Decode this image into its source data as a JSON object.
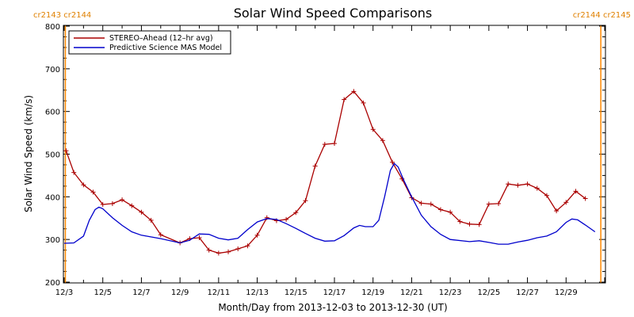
{
  "chart_data": {
    "type": "line",
    "title": "Solar Wind Speed Comparisons",
    "xlabel": "Month/Day from 2013-12-03 to 2013-12-30 (UT)",
    "ylabel": "Solar Wind Speed (km/s)",
    "xlim": [
      0,
      28
    ],
    "ylim": [
      200,
      800
    ],
    "x_ticks": [
      {
        "x": 0,
        "label": "12/3"
      },
      {
        "x": 2,
        "label": "12/5"
      },
      {
        "x": 4,
        "label": "12/7"
      },
      {
        "x": 6,
        "label": "12/9"
      },
      {
        "x": 8,
        "label": "12/11"
      },
      {
        "x": 10,
        "label": "12/13"
      },
      {
        "x": 12,
        "label": "12/15"
      },
      {
        "x": 14,
        "label": "12/17"
      },
      {
        "x": 16,
        "label": "12/19"
      },
      {
        "x": 18,
        "label": "12/21"
      },
      {
        "x": 20,
        "label": "12/23"
      },
      {
        "x": 22,
        "label": "12/25"
      },
      {
        "x": 24,
        "label": "12/27"
      },
      {
        "x": 26,
        "label": "12/29"
      }
    ],
    "y_ticks": [
      200,
      300,
      400,
      500,
      600,
      700,
      800
    ],
    "legend_position": "top-left",
    "colors": {
      "stereo": "#aa0000",
      "model": "#0000cc",
      "cr_line": "#ff8800",
      "cr_text": "#e08000"
    },
    "carrington_markers": [
      {
        "x": 0.06,
        "label": "cr2143 cr2144",
        "anchor": "start"
      },
      {
        "x": 27.8,
        "label": "cr2144 cr2145",
        "anchor": "end"
      }
    ],
    "series": [
      {
        "name": "STEREO–Ahead (12–hr avg)",
        "color": "#aa0000",
        "markers": true,
        "points": [
          [
            0.1,
            508
          ],
          [
            0.5,
            457
          ],
          [
            1.0,
            428
          ],
          [
            1.5,
            411
          ],
          [
            2.0,
            382
          ],
          [
            2.5,
            384
          ],
          [
            3.0,
            393
          ],
          [
            3.5,
            379
          ],
          [
            4.0,
            364
          ],
          [
            4.5,
            345
          ],
          [
            5.0,
            311
          ],
          [
            6.0,
            292
          ],
          [
            6.5,
            302
          ],
          [
            7.0,
            304
          ],
          [
            7.5,
            275
          ],
          [
            8.0,
            268
          ],
          [
            8.5,
            271
          ],
          [
            9.0,
            278
          ],
          [
            9.5,
            285
          ],
          [
            10.0,
            310
          ],
          [
            10.5,
            351
          ],
          [
            11.0,
            344
          ],
          [
            11.5,
            347
          ],
          [
            12.0,
            363
          ],
          [
            12.5,
            391
          ],
          [
            13.0,
            472
          ],
          [
            13.5,
            523
          ],
          [
            14.0,
            525
          ],
          [
            14.5,
            628
          ],
          [
            15.0,
            647
          ],
          [
            15.5,
            620
          ],
          [
            16.0,
            558
          ],
          [
            16.5,
            532
          ],
          [
            17.0,
            481
          ],
          [
            17.5,
            442
          ],
          [
            18.0,
            398
          ],
          [
            18.5,
            385
          ],
          [
            19.0,
            383
          ],
          [
            19.5,
            370
          ],
          [
            20.0,
            364
          ],
          [
            20.5,
            342
          ],
          [
            21.0,
            336
          ],
          [
            21.5,
            335
          ],
          [
            22.0,
            383
          ],
          [
            22.5,
            384
          ],
          [
            23.0,
            430
          ],
          [
            23.5,
            427
          ],
          [
            24.0,
            430
          ],
          [
            24.5,
            420
          ],
          [
            25.0,
            403
          ],
          [
            25.5,
            367
          ],
          [
            26.0,
            387
          ],
          [
            26.5,
            413
          ],
          [
            27.0,
            396
          ]
        ]
      },
      {
        "name": "Predictive Science MAS Model",
        "color": "#0000cc",
        "markers": false,
        "points": [
          [
            0.0,
            291
          ],
          [
            0.5,
            292
          ],
          [
            1.0,
            308
          ],
          [
            1.3,
            345
          ],
          [
            1.6,
            370
          ],
          [
            1.8,
            376
          ],
          [
            2.0,
            372
          ],
          [
            2.5,
            351
          ],
          [
            3.0,
            333
          ],
          [
            3.5,
            318
          ],
          [
            4.0,
            310
          ],
          [
            5.0,
            302
          ],
          [
            6.0,
            292
          ],
          [
            6.5,
            298
          ],
          [
            7.0,
            313
          ],
          [
            7.5,
            312
          ],
          [
            8.0,
            303
          ],
          [
            8.5,
            299
          ],
          [
            9.0,
            303
          ],
          [
            9.5,
            323
          ],
          [
            10.0,
            341
          ],
          [
            10.5,
            349
          ],
          [
            11.0,
            347
          ],
          [
            11.5,
            337
          ],
          [
            12.0,
            326
          ],
          [
            12.5,
            314
          ],
          [
            13.0,
            303
          ],
          [
            13.5,
            296
          ],
          [
            14.0,
            297
          ],
          [
            14.5,
            309
          ],
          [
            15.0,
            327
          ],
          [
            15.3,
            333
          ],
          [
            15.6,
            330
          ],
          [
            16.0,
            330
          ],
          [
            16.3,
            345
          ],
          [
            16.6,
            400
          ],
          [
            16.9,
            462
          ],
          [
            17.1,
            478
          ],
          [
            17.3,
            470
          ],
          [
            17.6,
            438
          ],
          [
            18.0,
            400
          ],
          [
            18.5,
            357
          ],
          [
            19.0,
            330
          ],
          [
            19.5,
            312
          ],
          [
            20.0,
            300
          ],
          [
            21.0,
            295
          ],
          [
            21.5,
            297
          ],
          [
            22.0,
            293
          ],
          [
            22.5,
            289
          ],
          [
            23.0,
            289
          ],
          [
            23.5,
            294
          ],
          [
            24.0,
            298
          ],
          [
            24.5,
            304
          ],
          [
            25.0,
            308
          ],
          [
            25.5,
            318
          ],
          [
            26.0,
            340
          ],
          [
            26.3,
            348
          ],
          [
            26.6,
            346
          ],
          [
            27.0,
            334
          ],
          [
            27.5,
            318
          ]
        ]
      }
    ]
  }
}
